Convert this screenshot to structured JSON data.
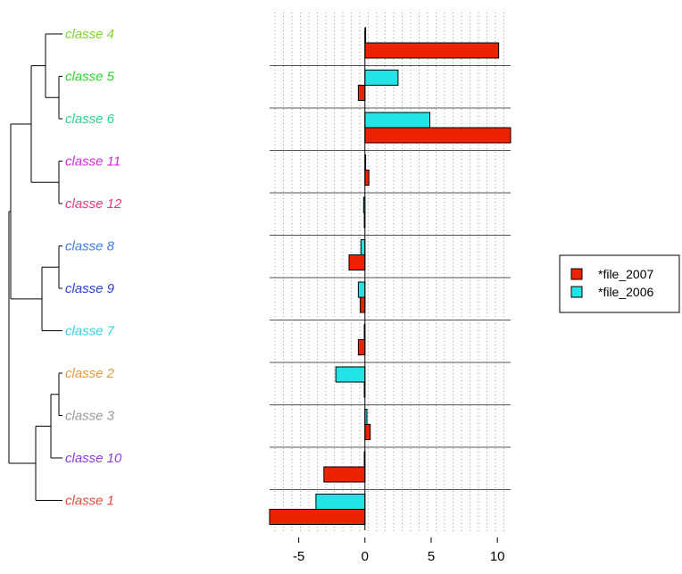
{
  "chart_data": {
    "type": "bar",
    "orientation": "horizontal",
    "xlim": [
      -7.2,
      11
    ],
    "xticks": [
      "-5",
      "0",
      "5",
      "10"
    ],
    "xtick_values": [
      -5,
      0,
      5,
      10
    ],
    "grid": true,
    "legend_position": "right",
    "legend": [
      {
        "label": "*file_2007",
        "color": "#ee2200"
      },
      {
        "label": "*file_2006",
        "color": "#22e4e6"
      }
    ],
    "classes": [
      {
        "label": "classe 4",
        "color": "#7fd62b",
        "file_2006": 0.0,
        "file_2007": 10.1
      },
      {
        "label": "classe 5",
        "color": "#2bd62b",
        "file_2006": 2.5,
        "file_2007": -0.5
      },
      {
        "label": "classe 6",
        "color": "#2bd68c",
        "file_2006": 4.9,
        "file_2007": 11.0
      },
      {
        "label": "classe 11",
        "color": "#d62bd6",
        "file_2006": 0.05,
        "file_2007": 0.3
      },
      {
        "label": "classe 12",
        "color": "#e0397f",
        "file_2006": -0.1,
        "file_2007": -0.05
      },
      {
        "label": "classe 8",
        "color": "#3d7fe6",
        "file_2006": -0.3,
        "file_2007": -1.2
      },
      {
        "label": "classe 9",
        "color": "#2b3fd6",
        "file_2006": -0.5,
        "file_2007": -0.35
      },
      {
        "label": "classe 7",
        "color": "#2bd6e6",
        "file_2006": -0.05,
        "file_2007": -0.5
      },
      {
        "label": "classe 2",
        "color": "#e69a3d",
        "file_2006": -2.2,
        "file_2007": -0.05
      },
      {
        "label": "classe 3",
        "color": "#9a9a9a",
        "file_2006": 0.15,
        "file_2007": 0.4
      },
      {
        "label": "classe 10",
        "color": "#8a3de6",
        "file_2006": -0.05,
        "file_2007": -3.1
      },
      {
        "label": "classe 1",
        "color": "#e64a3d",
        "file_2006": -3.7,
        "file_2007": -7.2
      }
    ]
  }
}
